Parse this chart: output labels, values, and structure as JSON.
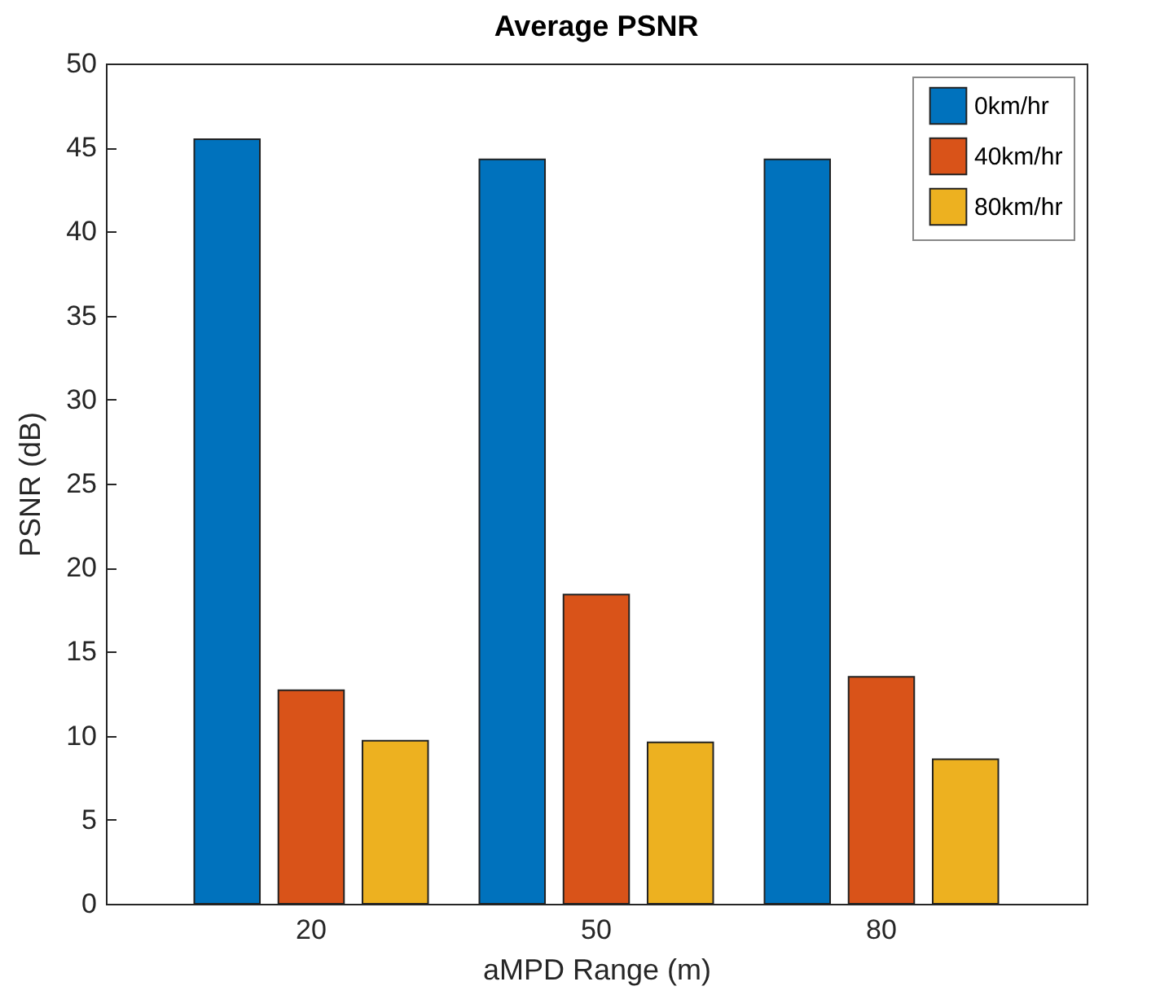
{
  "chart_data": {
    "type": "bar",
    "title": "Average PSNR",
    "xlabel": "aMPD Range (m)",
    "ylabel": "PSNR (dB)",
    "categories": [
      "20",
      "50",
      "80"
    ],
    "series": [
      {
        "name": "0km/hr",
        "color": "#0072bd",
        "values": [
          45.5,
          44.3,
          44.3
        ]
      },
      {
        "name": "40km/hr",
        "color": "#d95319",
        "values": [
          12.7,
          18.4,
          13.5
        ]
      },
      {
        "name": "80km/hr",
        "color": "#edb120",
        "values": [
          9.7,
          9.6,
          8.6
        ]
      }
    ],
    "ylim": [
      0,
      50
    ],
    "yticks": [
      0,
      5,
      10,
      15,
      20,
      25,
      30,
      35,
      40,
      45,
      50
    ],
    "grid": false,
    "legend": "top right"
  }
}
